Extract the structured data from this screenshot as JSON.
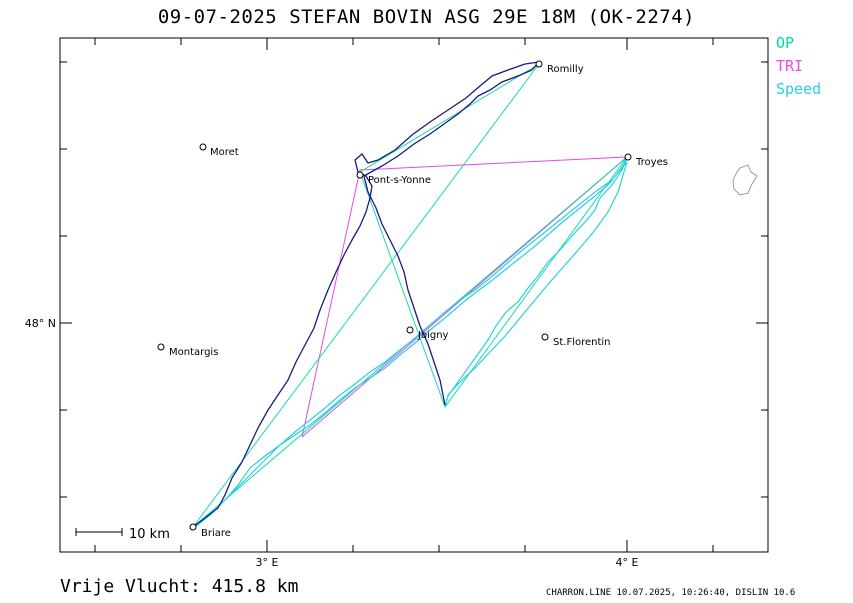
{
  "header": {
    "title": "09-07-2025   STEFAN BOVIN   ASG 29E 18M (OK-2274)"
  },
  "legend": [
    {
      "label": "OP",
      "color": "#00d9a6"
    },
    {
      "label": "TRI",
      "color": "#e24de6"
    },
    {
      "label": "Speed",
      "color": "#28d0e6"
    }
  ],
  "map": {
    "x_ticks": [
      "3° E",
      "4° E"
    ],
    "y_ticks": [
      "48° N"
    ],
    "scale_label": "10 km",
    "places": [
      "Moret",
      "Montargis",
      "Briare",
      "Pont-s-Yonne",
      "Joigny",
      "Romilly",
      "Troyes",
      "St.Florentin"
    ]
  },
  "footer": {
    "distance": "Vrije Vlucht:  415.8 km",
    "credits": "CHARRON.LINE 10.07.2025, 10:26:40, DISLIN 10.6"
  },
  "colors": {
    "track": "#1a1a80",
    "triangle": "#e24de6",
    "op": "#00d9a6",
    "speed": "#28d0e6"
  }
}
